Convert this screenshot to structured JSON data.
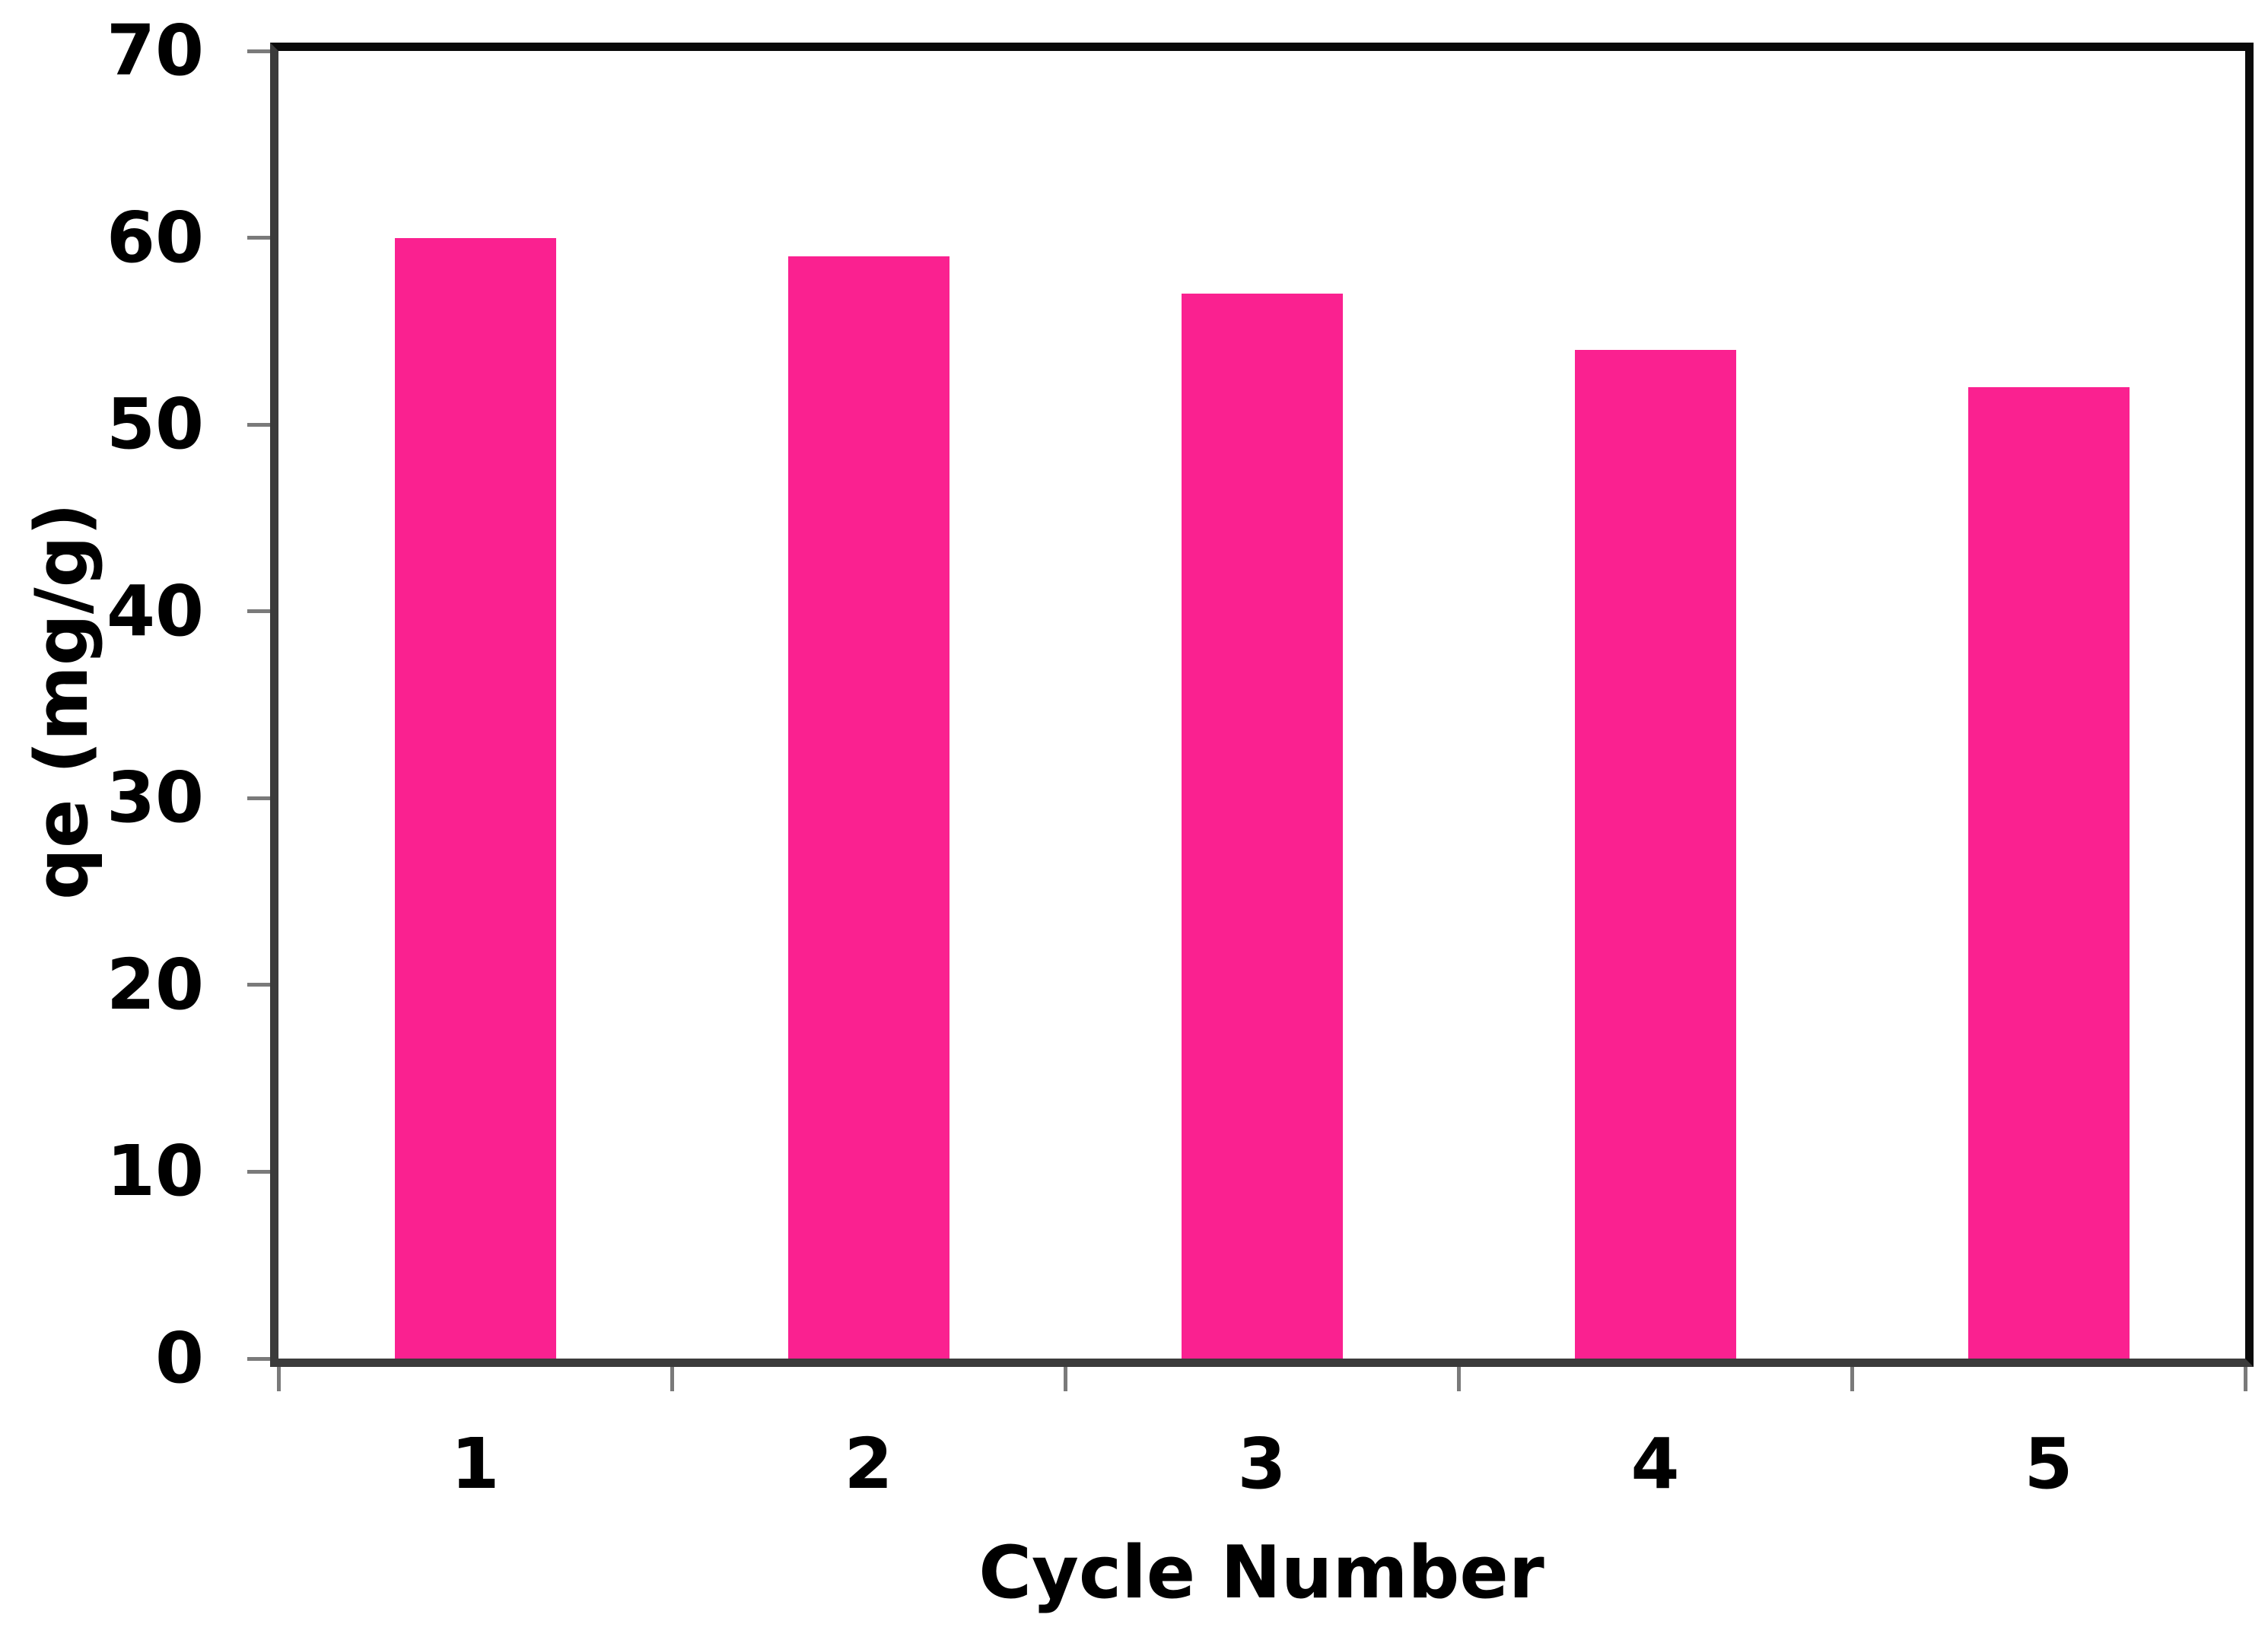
{
  "chart_data": {
    "type": "bar",
    "categories": [
      "1",
      "2",
      "3",
      "4",
      "5"
    ],
    "values": [
      60,
      59,
      57,
      54,
      52
    ],
    "series_name": "qe",
    "title": "",
    "xlabel": "Cycle Number",
    "ylabel": "qe (mg/g)",
    "ylim": [
      0,
      70
    ],
    "yticks": [
      0,
      10,
      20,
      30,
      40,
      50,
      60,
      70
    ],
    "grid": false,
    "legend_position": "none",
    "colors": {
      "bar_fill": "#FA2190",
      "axis_line_dark": "#3b3b3b",
      "border_black": "#0a0a0a",
      "tick_gray": "#7a7a7a",
      "text": "#000000",
      "background": "#ffffff"
    }
  }
}
